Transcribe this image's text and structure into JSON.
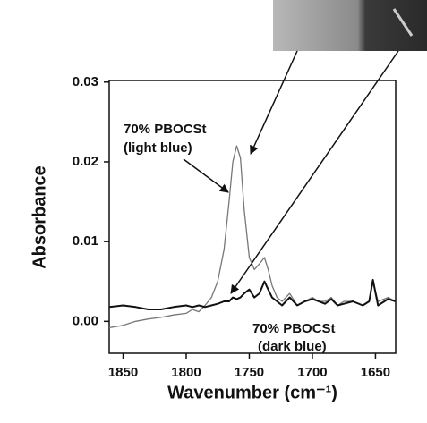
{
  "chart_data": {
    "type": "line",
    "x_label": "Wavenumber (cm⁻¹)",
    "y_label": "Absorbance",
    "annotations": [
      "70% PBOCSt",
      "(light blue)",
      "70% PBOCSt",
      "(dark blue)"
    ],
    "x": [
      1861,
      1850,
      1840,
      1830,
      1820,
      1810,
      1800,
      1795,
      1790,
      1785,
      1780,
      1775,
      1770,
      1766,
      1763,
      1760,
      1757,
      1754,
      1750,
      1746,
      1742,
      1738,
      1735,
      1732,
      1728,
      1724,
      1718,
      1712,
      1706,
      1700,
      1695,
      1690,
      1685,
      1680,
      1675,
      1668,
      1660,
      1655,
      1652,
      1648,
      1640,
      1634
    ],
    "series": [
      {
        "color": "#777777",
        "values": [
          -0.0008,
          -0.0005,
          0,
          0.0003,
          0.0005,
          0.0008,
          0.001,
          0.0015,
          0.0012,
          0.002,
          0.003,
          0.005,
          0.009,
          0.015,
          0.02,
          0.022,
          0.0205,
          0.014,
          0.008,
          0.0065,
          0.0072,
          0.008,
          0.0065,
          0.0045,
          0.003,
          0.0025,
          0.0035,
          0.002,
          0.0025,
          0.003,
          0.0025,
          0.0025,
          0.003,
          0.002,
          0.0025,
          0.0025,
          0.002,
          0.0025,
          0.005,
          0.0025,
          0.003,
          0.0025
        ]
      },
      {
        "color": "#111111",
        "values": [
          0.0018,
          0.002,
          0.0018,
          0.0015,
          0.0015,
          0.0018,
          0.002,
          0.0018,
          0.002,
          0.0018,
          0.002,
          0.0022,
          0.0025,
          0.0025,
          0.003,
          0.0028,
          0.003,
          0.0035,
          0.004,
          0.003,
          0.0035,
          0.005,
          0.004,
          0.003,
          0.0025,
          0.002,
          0.003,
          0.002,
          0.0025,
          0.0028,
          0.0025,
          0.0022,
          0.0028,
          0.002,
          0.0022,
          0.0025,
          0.002,
          0.0025,
          0.0052,
          0.002,
          0.0028,
          0.0025
        ]
      }
    ],
    "xlim": [
      1861,
      1634
    ],
    "xticks": [
      1850,
      1800,
      1750,
      1700,
      1650
    ],
    "ylim": [
      -0.004,
      0.0302
    ],
    "yticks": [
      {
        "value": 0,
        "label": "0.00"
      },
      0.01,
      0.02,
      0.03
    ]
  }
}
